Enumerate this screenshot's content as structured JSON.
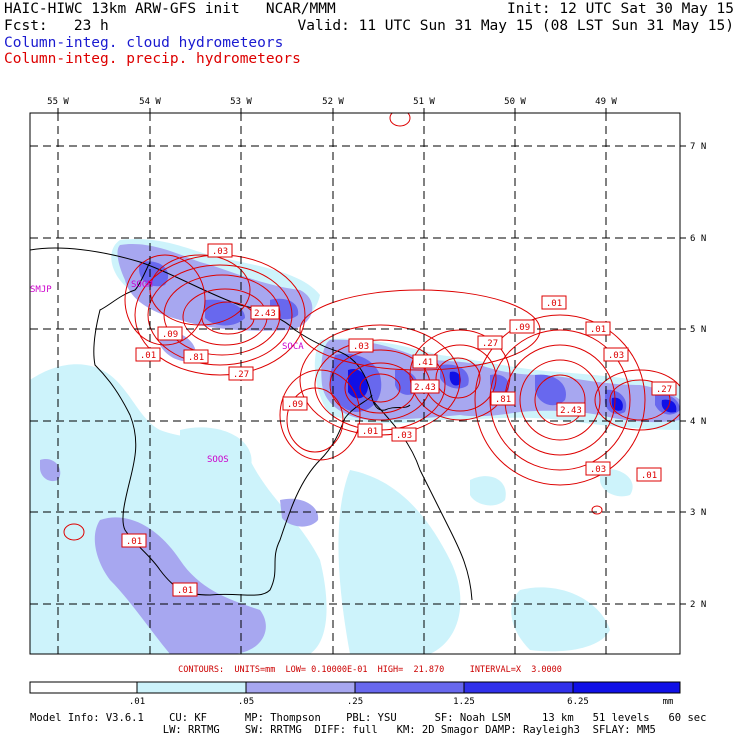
{
  "header": {
    "line1_left": "HAIC-HIWC 13km ARW-GFS init   NCAR/MMM",
    "line1_right": "Init: 12 UTC Sat 30 May 15",
    "line2_left": "Fcst:   23 h",
    "line2_right": "Valid: 11 UTC Sun 31 May 15 (08 LST Sun 31 May 15)",
    "legend_blue": "Column-integ. cloud hydrometeors",
    "legend_red": "Column-integ. precip. hydrometeors"
  },
  "colors": {
    "blue_text": "#1a1ad0",
    "red": "#dd0000",
    "magenta": "#cc00cc",
    "cloud_light": "#cdf3fb",
    "cloud_mid": "#a7a7f0",
    "cloud_strong": "#6868ee",
    "cloud_max": "#1010e6"
  },
  "map": {
    "lon_labels": [
      "55 W",
      "54 W",
      "53 W",
      "52 W",
      "51 W",
      "50 W",
      "49 W"
    ],
    "lat_labels": [
      "7 N",
      "6 N",
      "5 N",
      "4 N",
      "3 N",
      "2 N"
    ],
    "stations": [
      "SMJP",
      "SOGM",
      "SOCA",
      "SOOS"
    ],
    "contour_labels": [
      ".03",
      "2.43",
      ".09",
      ".01",
      ".81",
      ".27",
      ".03",
      ".41",
      "2.43",
      ".09",
      ".01",
      ".03",
      ".27",
      ".09",
      ".01",
      ".01",
      ".03",
      ".81",
      "2.43",
      ".27",
      ".03",
      ".01",
      ".01",
      ".01"
    ]
  },
  "contour_note": "CONTOURS:  UNITS=mm  LOW= 0.10000E-01  HIGH=  21.870     INTERVAL=X  3.0000",
  "colorbar": {
    "ticks": [
      ".01",
      ".05",
      ".25",
      "1.25",
      "6.25"
    ],
    "unit": "mm",
    "colors": [
      "#ffffff",
      "#cdf3fb",
      "#a7a7f0",
      "#6868ee",
      "#3030ea",
      "#1010e6"
    ]
  },
  "model_info": {
    "line1": "Model Info: V3.6.1    CU: KF      MP: Thompson    PBL: YSU      SF: Noah LSM     13 km   51 levels   60 sec",
    "line2": "                     LW: RRTMG    SW: RRTMG  DIFF: full   KM: 2D Smagor DAMP: Rayleigh3  SFLAY: MM5"
  }
}
